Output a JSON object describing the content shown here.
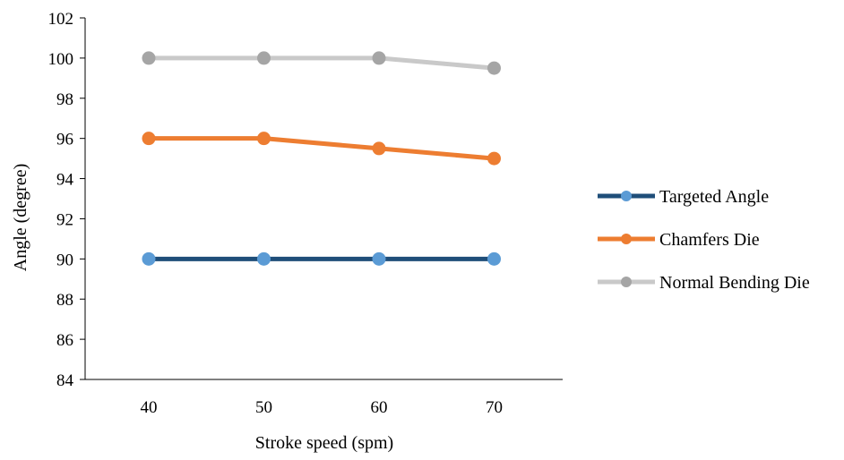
{
  "chart_data": {
    "type": "line",
    "title": "",
    "xlabel": "Stroke speed (spm)",
    "ylabel": "Angle (degree)",
    "categories": [
      "40",
      "50",
      "60",
      "70"
    ],
    "ylim": [
      84,
      102
    ],
    "yticks": [
      "84",
      "86",
      "88",
      "90",
      "92",
      "94",
      "96",
      "98",
      "100",
      "102"
    ],
    "grid": false,
    "legend_position": "right",
    "series": [
      {
        "name": "Targeted Angle",
        "values": [
          90,
          90,
          90,
          90
        ],
        "line_color": "#1f4e79",
        "marker_color": "#5b9bd5"
      },
      {
        "name": "Chamfers Die",
        "values": [
          96,
          96,
          95.5,
          95
        ],
        "line_color": "#ed7d31",
        "marker_color": "#ed7d31"
      },
      {
        "name": "Normal Bending Die",
        "values": [
          100,
          100,
          100,
          99.5
        ],
        "line_color": "#c9c9c9",
        "marker_color": "#a5a5a5"
      }
    ]
  }
}
